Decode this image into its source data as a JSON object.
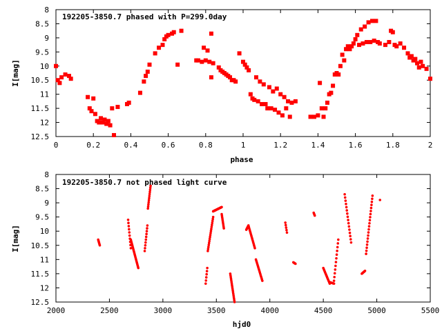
{
  "chart_data": [
    {
      "type": "scatter",
      "title": "192205-3850.7 phased with P=299.0day",
      "xlabel": "phase",
      "ylabel": "I[mag]",
      "xlim": [
        0,
        2
      ],
      "ylim": [
        12.5,
        8
      ],
      "y_inverted": true,
      "xticks": [
        "0",
        "0.2",
        "0.4",
        "0.6",
        "0.8",
        "1",
        "1.2",
        "1.4",
        "1.6",
        "1.8",
        "2"
      ],
      "yticks": [
        "8",
        "8.5",
        "9",
        "9.5",
        "10",
        "10.5",
        "11",
        "11.5",
        "12",
        "12.5"
      ],
      "marker_color": "#ff0000",
      "marker": "filled-square",
      "points": [
        [
          0.0,
          10.0
        ],
        [
          0.01,
          10.5
        ],
        [
          0.02,
          10.6
        ],
        [
          0.03,
          10.4
        ],
        [
          0.05,
          10.3
        ],
        [
          0.07,
          10.35
        ],
        [
          0.08,
          10.45
        ],
        [
          0.17,
          11.1
        ],
        [
          0.18,
          11.5
        ],
        [
          0.19,
          11.6
        ],
        [
          0.2,
          11.15
        ],
        [
          0.21,
          11.7
        ],
        [
          0.22,
          11.95
        ],
        [
          0.23,
          12.0
        ],
        [
          0.24,
          11.85
        ],
        [
          0.25,
          12.0
        ],
        [
          0.26,
          11.9
        ],
        [
          0.27,
          12.05
        ],
        [
          0.28,
          11.95
        ],
        [
          0.29,
          12.1
        ],
        [
          0.3,
          11.5
        ],
        [
          0.31,
          12.45
        ],
        [
          0.33,
          11.45
        ],
        [
          0.38,
          11.35
        ],
        [
          0.39,
          11.3
        ],
        [
          0.45,
          10.95
        ],
        [
          0.47,
          10.55
        ],
        [
          0.48,
          10.35
        ],
        [
          0.49,
          10.2
        ],
        [
          0.5,
          9.95
        ],
        [
          0.53,
          9.55
        ],
        [
          0.55,
          9.35
        ],
        [
          0.57,
          9.25
        ],
        [
          0.58,
          9.05
        ],
        [
          0.59,
          8.95
        ],
        [
          0.6,
          8.9
        ],
        [
          0.62,
          8.85
        ],
        [
          0.63,
          8.8
        ],
        [
          0.65,
          9.95
        ],
        [
          0.67,
          8.75
        ],
        [
          0.75,
          9.8
        ],
        [
          0.76,
          9.8
        ],
        [
          0.78,
          9.85
        ],
        [
          0.79,
          9.35
        ],
        [
          0.8,
          9.8
        ],
        [
          0.81,
          9.45
        ],
        [
          0.82,
          9.85
        ],
        [
          0.83,
          10.4
        ],
        [
          0.83,
          8.85
        ],
        [
          0.84,
          9.9
        ],
        [
          0.87,
          10.05
        ],
        [
          0.88,
          10.15
        ],
        [
          0.89,
          10.2
        ],
        [
          0.9,
          10.25
        ],
        [
          0.91,
          10.3
        ],
        [
          0.92,
          10.35
        ],
        [
          0.93,
          10.4
        ],
        [
          0.94,
          10.5
        ],
        [
          0.95,
          10.5
        ],
        [
          0.96,
          10.55
        ],
        [
          0.98,
          9.55
        ],
        [
          1.0,
          9.85
        ],
        [
          1.01,
          9.95
        ],
        [
          1.02,
          10.05
        ],
        [
          1.03,
          10.15
        ],
        [
          1.04,
          11.0
        ],
        [
          1.05,
          11.15
        ],
        [
          1.06,
          11.2
        ],
        [
          1.07,
          10.4
        ],
        [
          1.08,
          11.25
        ],
        [
          1.09,
          10.55
        ],
        [
          1.1,
          11.35
        ],
        [
          1.11,
          10.65
        ],
        [
          1.12,
          11.35
        ],
        [
          1.13,
          11.5
        ],
        [
          1.14,
          10.75
        ],
        [
          1.15,
          11.5
        ],
        [
          1.16,
          10.9
        ],
        [
          1.17,
          11.55
        ],
        [
          1.18,
          10.8
        ],
        [
          1.19,
          11.65
        ],
        [
          1.2,
          11.0
        ],
        [
          1.21,
          11.75
        ],
        [
          1.22,
          11.1
        ],
        [
          1.23,
          11.5
        ],
        [
          1.24,
          11.25
        ],
        [
          1.25,
          11.8
        ],
        [
          1.26,
          11.3
        ],
        [
          1.28,
          11.25
        ],
        [
          1.36,
          11.8
        ],
        [
          1.38,
          11.8
        ],
        [
          1.4,
          11.75
        ],
        [
          1.41,
          10.6
        ],
        [
          1.42,
          11.5
        ],
        [
          1.43,
          11.8
        ],
        [
          1.44,
          11.5
        ],
        [
          1.45,
          11.3
        ],
        [
          1.46,
          11.0
        ],
        [
          1.47,
          10.95
        ],
        [
          1.48,
          10.7
        ],
        [
          1.49,
          10.3
        ],
        [
          1.5,
          10.25
        ],
        [
          1.51,
          10.3
        ],
        [
          1.52,
          10.0
        ],
        [
          1.53,
          9.6
        ],
        [
          1.54,
          9.8
        ],
        [
          1.55,
          9.4
        ],
        [
          1.56,
          9.3
        ],
        [
          1.57,
          9.4
        ],
        [
          1.58,
          9.3
        ],
        [
          1.59,
          9.2
        ],
        [
          1.6,
          9.05
        ],
        [
          1.61,
          8.9
        ],
        [
          1.62,
          9.25
        ],
        [
          1.63,
          8.7
        ],
        [
          1.64,
          9.2
        ],
        [
          1.65,
          8.6
        ],
        [
          1.66,
          9.15
        ],
        [
          1.67,
          8.45
        ],
        [
          1.68,
          9.15
        ],
        [
          1.69,
          8.4
        ],
        [
          1.7,
          9.1
        ],
        [
          1.71,
          8.4
        ],
        [
          1.72,
          9.15
        ],
        [
          1.73,
          9.2
        ],
        [
          1.76,
          9.25
        ],
        [
          1.78,
          9.15
        ],
        [
          1.79,
          8.75
        ],
        [
          1.8,
          8.8
        ],
        [
          1.81,
          9.25
        ],
        [
          1.82,
          9.3
        ],
        [
          1.84,
          9.2
        ],
        [
          1.86,
          9.35
        ],
        [
          1.88,
          9.55
        ],
        [
          1.89,
          9.7
        ],
        [
          1.9,
          9.65
        ],
        [
          1.91,
          9.8
        ],
        [
          1.92,
          9.75
        ],
        [
          1.93,
          9.9
        ],
        [
          1.94,
          10.05
        ],
        [
          1.95,
          9.85
        ],
        [
          1.96,
          10.0
        ],
        [
          1.98,
          10.1
        ],
        [
          2.0,
          10.45
        ]
      ]
    },
    {
      "type": "scatter",
      "title": "192205-3850.7 not phased light curve",
      "xlabel": "hjd0",
      "ylabel": "I[mag]",
      "xlim": [
        2000,
        5500
      ],
      "ylim": [
        12.5,
        8
      ],
      "y_inverted": true,
      "xticks": [
        "2000",
        "2500",
        "3000",
        "3500",
        "4000",
        "4500",
        "5000",
        "5500"
      ],
      "yticks": [
        "8",
        "8.5",
        "9",
        "9.5",
        "10",
        "10.5",
        "11",
        "11.5",
        "12",
        "12.5"
      ],
      "marker_color": "#ff0000",
      "marker": "small-dot",
      "segments": [
        {
          "x0": 2395,
          "x1": 2410,
          "y": [
            10.3,
            10.5
          ],
          "n": 6
        },
        {
          "x0": 2675,
          "x1": 2700,
          "y": [
            9.6,
            10.6
          ],
          "n": 10
        },
        {
          "x0": 2700,
          "x1": 2770,
          "y": [
            10.3,
            11.3
          ],
          "n": 22
        },
        {
          "x0": 2830,
          "x1": 2855,
          "y": [
            10.7,
            9.8
          ],
          "n": 10
        },
        {
          "x0": 2860,
          "x1": 2885,
          "y": [
            9.2,
            8.4
          ],
          "n": 12
        },
        {
          "x0": 3400,
          "x1": 3415,
          "y": [
            11.85,
            11.3
          ],
          "n": 6
        },
        {
          "x0": 3420,
          "x1": 3470,
          "y": [
            10.7,
            9.5
          ],
          "n": 18
        },
        {
          "x0": 3470,
          "x1": 3550,
          "y": [
            9.3,
            9.15
          ],
          "n": 24
        },
        {
          "x0": 3550,
          "x1": 3570,
          "y": [
            9.4,
            9.9
          ],
          "n": 10
        },
        {
          "x0": 3630,
          "x1": 3670,
          "y": [
            11.5,
            12.5
          ],
          "n": 18
        },
        {
          "x0": 3780,
          "x1": 3800,
          "y": [
            9.95,
            9.8
          ],
          "n": 8
        },
        {
          "x0": 3800,
          "x1": 3860,
          "y": [
            9.8,
            10.6
          ],
          "n": 16
        },
        {
          "x0": 3870,
          "x1": 3930,
          "y": [
            11.0,
            11.75
          ],
          "n": 16
        },
        {
          "x0": 4145,
          "x1": 4160,
          "y": [
            9.7,
            10.05
          ],
          "n": 5
        },
        {
          "x0": 4220,
          "x1": 4240,
          "y": [
            11.1,
            11.15
          ],
          "n": 5
        },
        {
          "x0": 4410,
          "x1": 4420,
          "y": [
            9.35,
            9.45
          ],
          "n": 4
        },
        {
          "x0": 4500,
          "x1": 4560,
          "y": [
            11.3,
            11.85
          ],
          "n": 14
        },
        {
          "x0": 4560,
          "x1": 4600,
          "y": [
            11.8,
            11.85
          ],
          "n": 8
        },
        {
          "x0": 4600,
          "x1": 4640,
          "y": [
            11.75,
            10.3
          ],
          "n": 12
        },
        {
          "x0": 4700,
          "x1": 4760,
          "y": [
            8.7,
            10.4
          ],
          "n": 16
        },
        {
          "x0": 4860,
          "x1": 4890,
          "y": [
            11.5,
            11.4
          ],
          "n": 8
        },
        {
          "x0": 4900,
          "x1": 4960,
          "y": [
            10.8,
            8.75
          ],
          "n": 20
        },
        {
          "x0": 5030,
          "x1": 5030,
          "y": [
            8.9,
            8.9
          ],
          "n": 1
        }
      ]
    }
  ]
}
